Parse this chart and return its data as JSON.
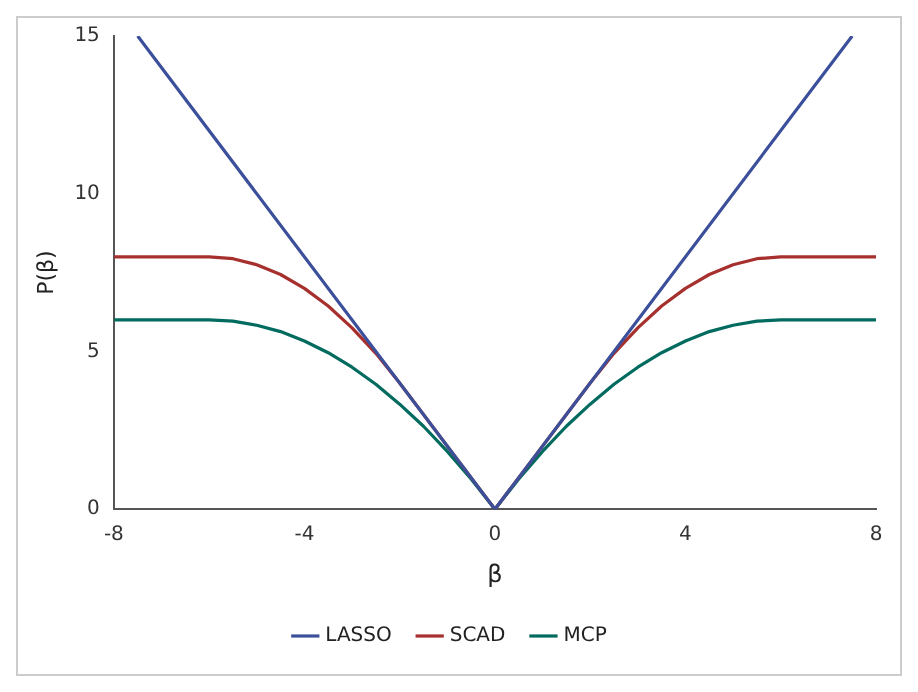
{
  "chart_data": {
    "type": "line",
    "xlabel": "β",
    "ylabel": "P(β)",
    "x": [
      -8,
      -7.5,
      -7,
      -6.5,
      -6,
      -5.5,
      -5,
      -4.5,
      -4,
      -3.5,
      -3,
      -2.5,
      -2,
      -1.5,
      -1,
      -0.5,
      0,
      0.5,
      1,
      1.5,
      2,
      2.5,
      3,
      3.5,
      4,
      4.5,
      5,
      5.5,
      6,
      6.5,
      7,
      7.5,
      8
    ],
    "series": [
      {
        "name": "LASSO",
        "color": "#3b4f9a",
        "x": [
          -7.5,
          0,
          7.5
        ],
        "values": [
          15,
          0,
          15
        ]
      },
      {
        "name": "SCAD",
        "color": "#a6302e",
        "values": [
          8,
          8,
          8,
          8,
          8,
          7.94,
          7.75,
          7.44,
          7,
          6.44,
          5.75,
          4.94,
          4,
          3,
          2,
          1,
          0,
          1,
          2,
          3,
          4,
          4.94,
          5.75,
          6.44,
          7,
          7.44,
          7.75,
          7.94,
          8,
          8,
          8,
          8,
          8
        ]
      },
      {
        "name": "MCP",
        "color": "#006b5e",
        "values": [
          6,
          6,
          6,
          6,
          6,
          5.96,
          5.83,
          5.63,
          5.33,
          4.96,
          4.5,
          3.96,
          3.33,
          2.63,
          1.83,
          0.96,
          0,
          0.96,
          1.83,
          2.63,
          3.33,
          3.96,
          4.5,
          4.96,
          5.33,
          5.63,
          5.83,
          5.96,
          6,
          6,
          6,
          6,
          6
        ]
      }
    ],
    "xlim": [
      -8,
      8
    ],
    "xticks": [
      -8,
      -4,
      0,
      4,
      8
    ],
    "ylim": [
      0,
      15
    ],
    "yticks": [
      0,
      5,
      10,
      15
    ],
    "grid": false,
    "legend": "bottom",
    "marker": "none",
    "line_style": "solid"
  }
}
